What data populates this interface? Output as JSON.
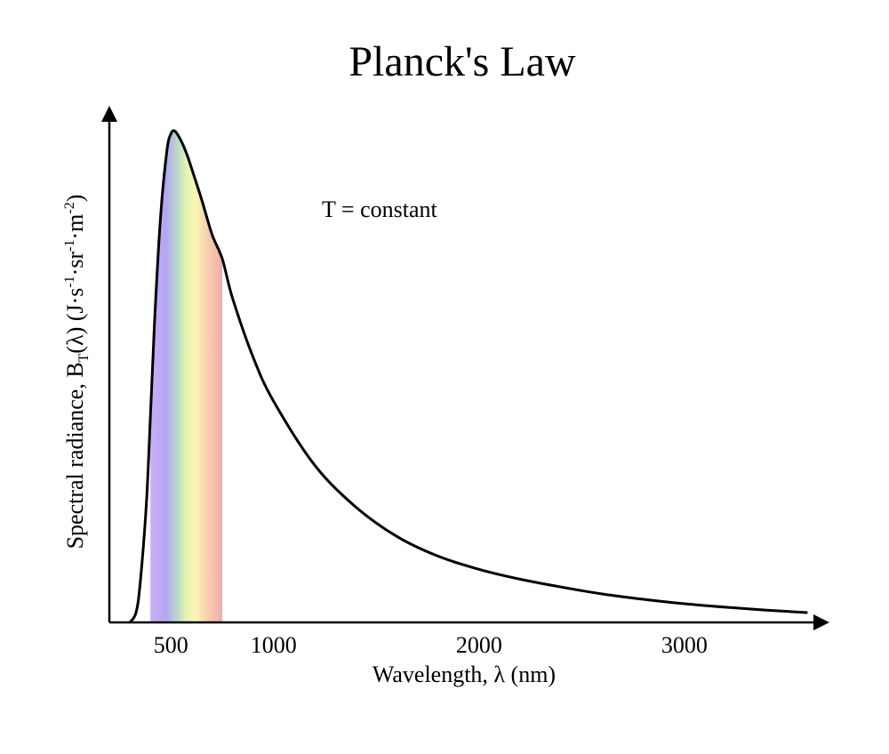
{
  "chart_data": {
    "type": "line",
    "title": "Planck's Law",
    "xlabel": "Wavelength, λ (nm)",
    "ylabel_parts": {
      "main": "Spectral radiance, B",
      "sub": "T",
      "mid": "(λ) (J·s",
      "sup1": "-1",
      "mid2": "·sr",
      "sup2": "-1",
      "mid3": "·m",
      "sup3": "-2",
      "end": ")"
    },
    "annotation": "T = constant",
    "xlim": [
      200,
      3650
    ],
    "ylim": [
      0,
      1.05
    ],
    "x_ticks": [
      {
        "value": 500,
        "label": "500"
      },
      {
        "value": 1000,
        "label": "1000"
      },
      {
        "value": 2000,
        "label": "2000"
      },
      {
        "value": 3000,
        "label": "3000"
      }
    ],
    "visible_band": {
      "start": 400,
      "end": 750
    },
    "series": [
      {
        "x": [
          300,
          330,
          350,
          380,
          400,
          420,
          450,
          480,
          500,
          520,
          550,
          580,
          600,
          650,
          700,
          750,
          800,
          900,
          1000,
          1200,
          1400,
          1600,
          1800,
          2000,
          2200,
          2400,
          2600,
          2800,
          3000,
          3200,
          3400,
          3600
        ],
        "y": [
          0.0,
          0.02,
          0.08,
          0.24,
          0.42,
          0.61,
          0.83,
          0.96,
          0.995,
          1.0,
          0.98,
          0.95,
          0.925,
          0.86,
          0.79,
          0.74,
          0.66,
          0.54,
          0.45,
          0.32,
          0.235,
          0.175,
          0.135,
          0.108,
          0.088,
          0.072,
          0.058,
          0.047,
          0.038,
          0.031,
          0.025,
          0.02
        ]
      }
    ]
  }
}
